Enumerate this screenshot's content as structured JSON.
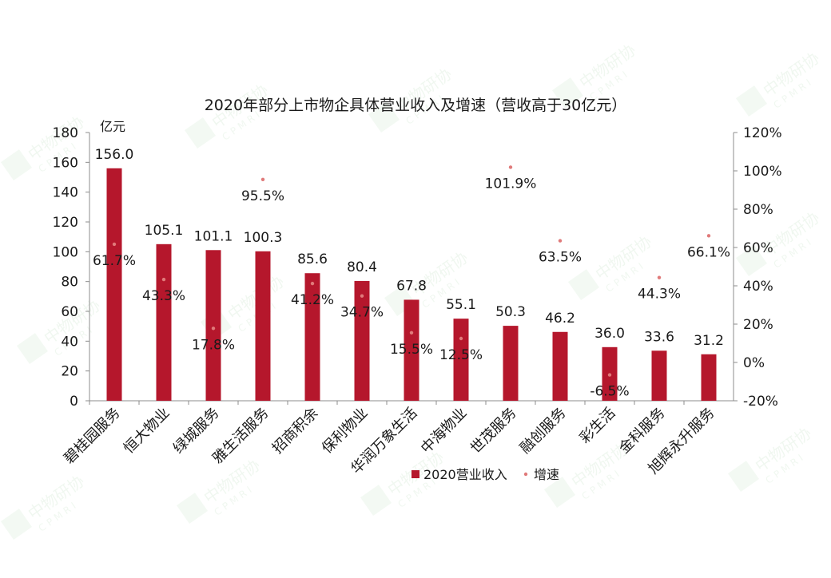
{
  "chart_data": {
    "type": "bar",
    "title": "2020年部分上市物企具体营业收入及增速（营收高于30亿元）",
    "y_unit_label": "亿元",
    "categories": [
      "碧桂园服务",
      "恒大物业",
      "绿城服务",
      "雅生活服务",
      "招商积余",
      "保利物业",
      "华润万象生活",
      "中海物业",
      "世茂服务",
      "融创服务",
      "彩生活",
      "金科服务",
      "旭辉永升服务"
    ],
    "series": [
      {
        "name": "2020营业收入",
        "type": "bar",
        "axis": "left",
        "color": "#b5172c",
        "values": [
          156.0,
          105.1,
          101.1,
          100.3,
          85.6,
          80.4,
          67.8,
          55.1,
          50.3,
          46.2,
          36.0,
          33.6,
          31.2
        ],
        "labels": [
          "156.0",
          "105.1",
          "101.1",
          "100.3",
          "85.6",
          "80.4",
          "67.8",
          "55.1",
          "50.3",
          "46.2",
          "36.0",
          "33.6",
          "31.2"
        ]
      },
      {
        "name": "增速",
        "type": "scatter",
        "axis": "right",
        "color": "#e07a7a",
        "values": [
          61.7,
          43.3,
          17.8,
          95.5,
          41.2,
          34.7,
          15.5,
          12.5,
          101.9,
          63.5,
          -6.5,
          44.3,
          66.1
        ],
        "labels": [
          "61.7%",
          "43.3%",
          "17.8%",
          "95.5%",
          "41.2%",
          "34.7%",
          "15.5%",
          "12.5%",
          "101.9%",
          "63.5%",
          "-6.5%",
          "44.3%",
          "66.1%"
        ]
      }
    ],
    "ylim_left": [
      0,
      180
    ],
    "yticks_left": [
      "0",
      "20",
      "40",
      "60",
      "80",
      "100",
      "120",
      "140",
      "160",
      "180"
    ],
    "ylim_right": [
      -20,
      120
    ],
    "yticks_right": [
      "-20%",
      "0%",
      "20%",
      "40%",
      "60%",
      "80%",
      "100%",
      "120%"
    ],
    "legend_position": "bottom",
    "grid": false
  },
  "watermark": {
    "cn": "中物研协",
    "en": "CPMRI"
  }
}
